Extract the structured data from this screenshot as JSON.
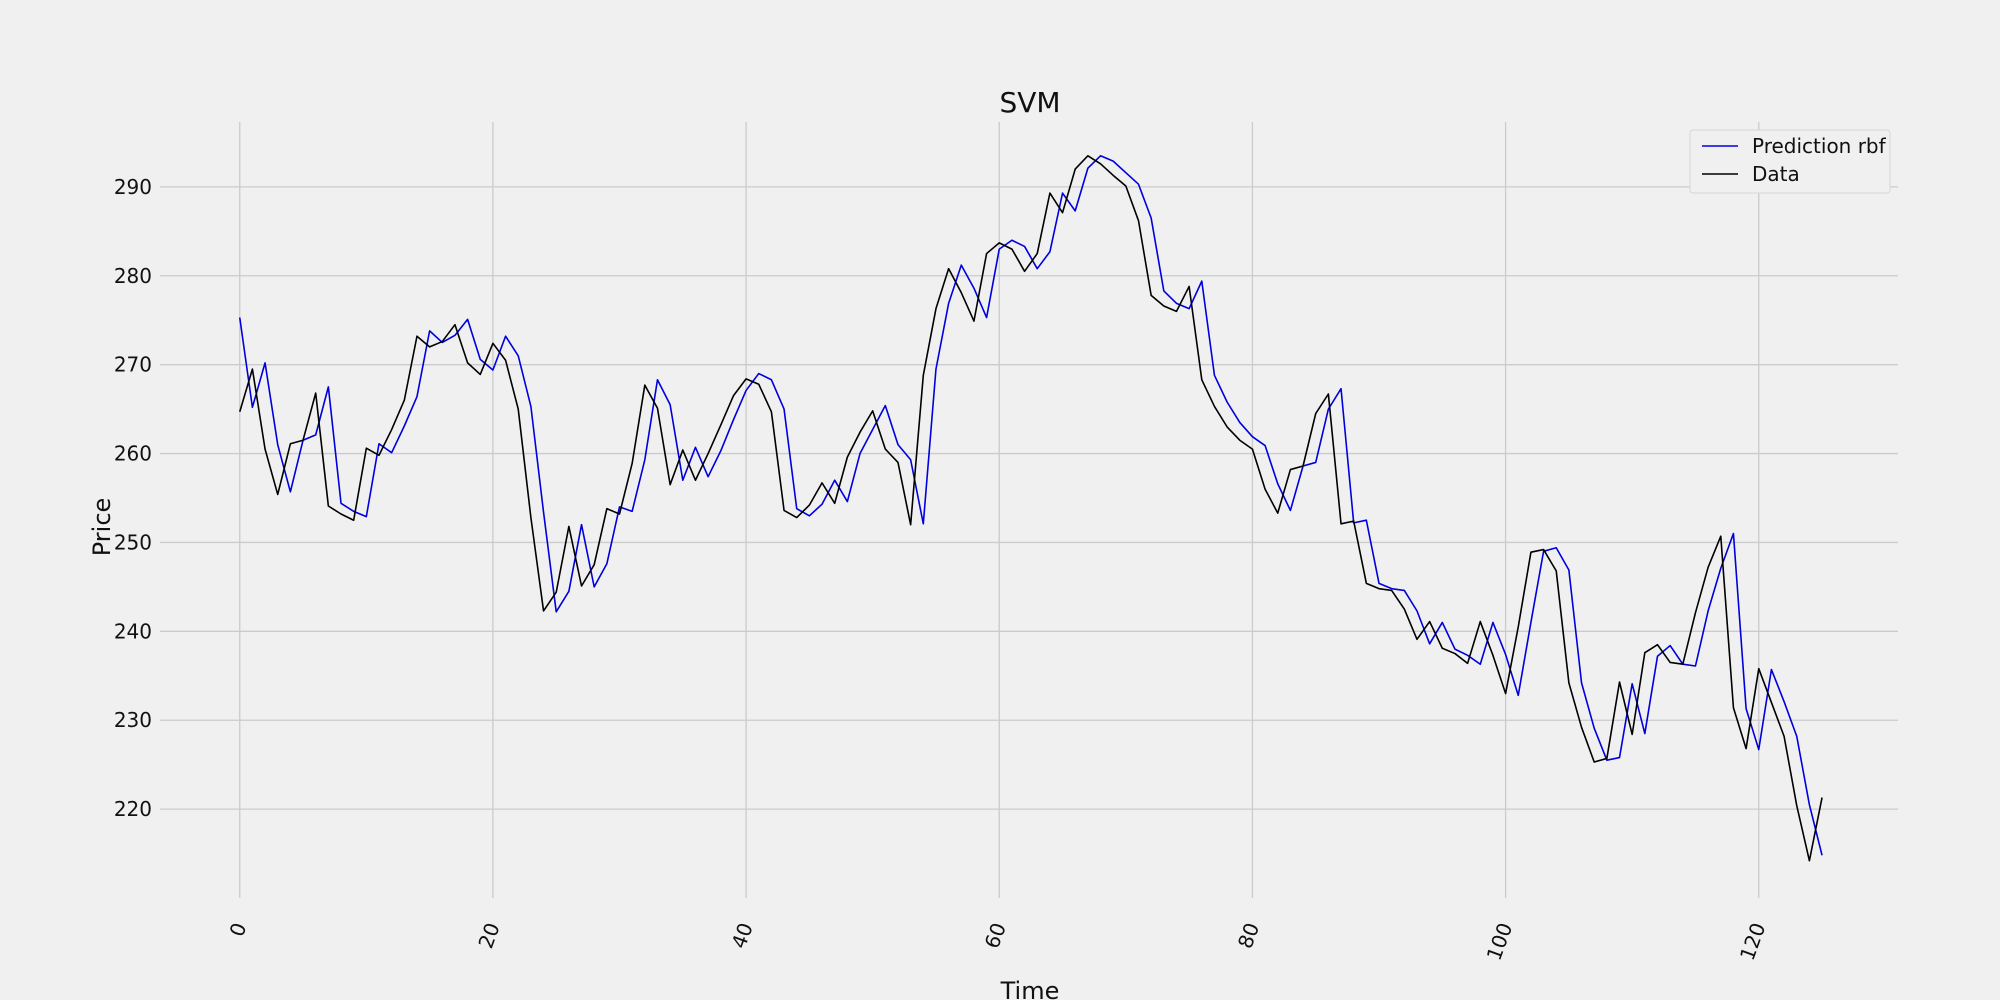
{
  "chart_data": {
    "type": "line",
    "title": "SVM",
    "xlabel": "Time",
    "ylabel": "Price",
    "xlim": [
      -6.3,
      131
    ],
    "ylim": [
      210,
      297.3
    ],
    "xticks": [
      0,
      20,
      40,
      60,
      80,
      100,
      120
    ],
    "yticks": [
      220,
      230,
      240,
      250,
      260,
      270,
      280,
      290
    ],
    "grid": true,
    "legend_placement": "top-right",
    "series": [
      {
        "name": "Prediction rbf",
        "color": "#0000dd",
        "values": [
          275.3,
          265.2,
          270.2,
          261.0,
          255.7,
          261.5,
          262.1,
          267.5,
          254.4,
          253.5,
          252.9,
          261.1,
          260.1,
          263.1,
          266.4,
          273.8,
          272.5,
          273.3,
          275.1,
          270.6,
          269.4,
          273.2,
          271.0,
          265.3,
          253.4,
          242.2,
          244.5,
          252.0,
          245.0,
          247.6,
          254.0,
          253.5,
          259.3,
          268.3,
          265.5,
          257.0,
          260.7,
          257.4,
          260.3,
          263.8,
          267.1,
          269.0,
          268.3,
          265.0,
          253.8,
          253.0,
          254.3,
          257.0,
          254.6,
          260.0,
          262.7,
          265.4,
          261.0,
          259.3,
          252.1,
          269.5,
          276.9,
          281.2,
          278.6,
          275.3,
          283.0,
          284.0,
          283.3,
          280.8,
          282.7,
          289.3,
          287.3,
          292.1,
          293.5,
          292.9,
          291.6,
          290.3,
          286.5,
          278.3,
          276.9,
          276.3,
          279.4,
          268.8,
          265.8,
          263.5,
          261.9,
          260.9,
          256.6,
          253.6,
          258.6,
          259.0,
          265.0,
          267.3,
          252.2,
          252.5,
          245.4,
          244.8,
          244.6,
          242.3,
          238.6,
          241.0,
          238.0,
          237.3,
          236.3,
          241.0,
          237.4,
          232.8,
          241.0,
          249.0,
          249.4,
          246.9,
          234.2,
          229.1,
          225.5,
          225.8,
          234.1,
          228.5,
          237.2,
          238.4,
          236.3,
          236.1,
          242.3,
          247.1,
          251.0,
          231.3,
          226.7,
          235.7,
          232.1,
          228.2,
          220.5,
          214.8
        ]
      },
      {
        "name": "Data",
        "color": "#000000",
        "values": [
          264.7,
          269.5,
          260.5,
          255.4,
          261.1,
          261.5,
          266.8,
          254.1,
          253.2,
          252.5,
          260.6,
          259.8,
          262.7,
          266.0,
          273.2,
          272.0,
          272.6,
          274.5,
          270.2,
          268.9,
          272.4,
          270.5,
          265.0,
          252.8,
          242.3,
          244.4,
          251.8,
          245.1,
          247.5,
          253.8,
          253.2,
          258.9,
          267.7,
          265.1,
          256.5,
          260.4,
          257.0,
          260.0,
          263.2,
          266.5,
          268.4,
          267.8,
          264.7,
          253.6,
          252.8,
          254.2,
          256.7,
          254.4,
          259.6,
          262.4,
          264.8,
          260.5,
          259.0,
          252.0,
          268.8,
          276.3,
          280.8,
          278.1,
          274.9,
          282.5,
          283.7,
          283.0,
          280.5,
          282.5,
          289.3,
          287.1,
          292.0,
          293.5,
          292.6,
          291.3,
          290.1,
          286.2,
          277.8,
          276.6,
          276.0,
          278.8,
          268.3,
          265.3,
          263.0,
          261.5,
          260.5,
          256.0,
          253.3,
          258.2,
          258.6,
          264.5,
          266.7,
          252.1,
          252.4,
          245.4,
          244.8,
          244.6,
          242.5,
          239.1,
          241.1,
          238.1,
          237.5,
          236.4,
          241.1,
          237.3,
          233.0,
          240.5,
          248.9,
          249.2,
          246.8,
          234.2,
          229.2,
          225.3,
          225.7,
          234.3,
          228.4,
          237.6,
          238.5,
          236.5,
          236.3,
          242.1,
          247.2,
          250.7,
          231.4,
          226.8,
          235.8,
          232.0,
          228.2,
          220.4,
          214.2,
          221.3
        ]
      }
    ]
  }
}
